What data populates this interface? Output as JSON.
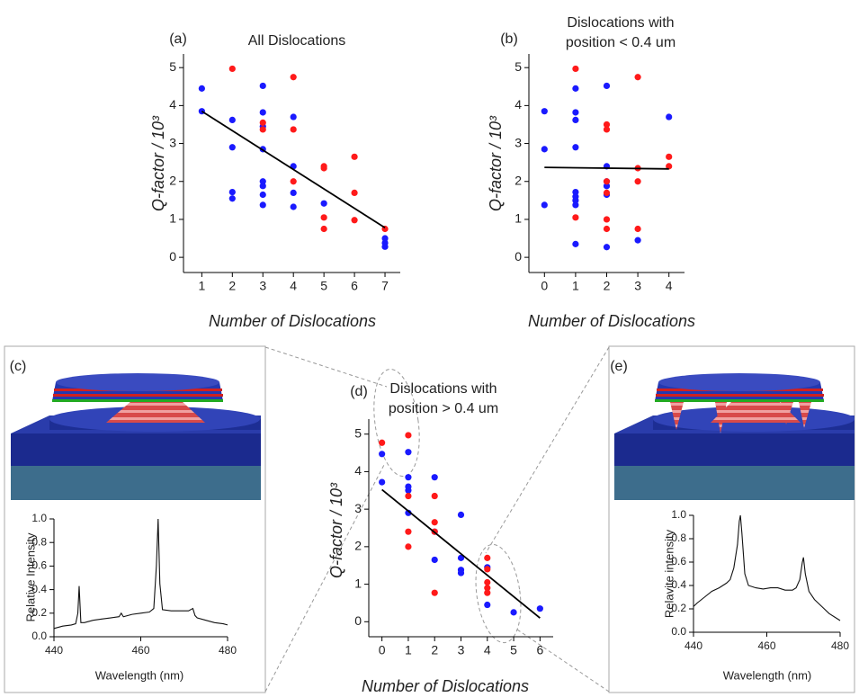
{
  "chart_data": [
    {
      "type": "scatter",
      "label": "(a)",
      "title": [
        "All Dislocations"
      ],
      "xlabel": "Number of Dislocations",
      "ylabel": "Q-factor / 10³",
      "xlim": [
        0.4,
        7.5
      ],
      "ylim": [
        -0.4,
        5.36
      ],
      "xticks": [
        1,
        2,
        3,
        4,
        5,
        6,
        7
      ],
      "yticks": [
        0,
        1,
        2,
        3,
        4,
        5
      ],
      "points": [
        {
          "color": "#1a1aff",
          "x": [
            1,
            1,
            2,
            2,
            2,
            2,
            3,
            3,
            3,
            3,
            3,
            3,
            3,
            3,
            4,
            4,
            4,
            4,
            5,
            7,
            7,
            7
          ],
          "values": [
            4.45,
            3.85,
            3.62,
            2.9,
            1.72,
            1.55,
            4.52,
            3.82,
            3.45,
            2.85,
            2.0,
            1.88,
            1.65,
            1.38,
            3.7,
            2.4,
            1.7,
            1.33,
            1.42,
            0.5,
            0.38,
            0.28
          ]
        },
        {
          "color": "#ff1a1a",
          "x": [
            2,
            3,
            3,
            4,
            4,
            4,
            5,
            5,
            5,
            5,
            6,
            6,
            6,
            7
          ],
          "values": [
            4.97,
            3.55,
            3.37,
            4.75,
            3.37,
            2.0,
            2.4,
            2.35,
            1.05,
            0.75,
            2.65,
            1.7,
            0.98,
            0.75
          ]
        }
      ],
      "fit": {
        "x": [
          1,
          7
        ],
        "values": [
          3.85,
          0.78
        ]
      }
    },
    {
      "type": "scatter",
      "label": "(b)",
      "title": [
        "Dislocations with",
        "position < 0.4 um"
      ],
      "xlabel": "Number of Dislocations",
      "ylabel": "Q-factor / 10³",
      "xlim": [
        -0.5,
        4.5
      ],
      "ylim": [
        -0.4,
        5.36
      ],
      "xticks": [
        0,
        1,
        2,
        3,
        4
      ],
      "yticks": [
        0,
        1,
        2,
        3,
        4,
        5
      ],
      "points": [
        {
          "color": "#1a1aff",
          "x": [
            0,
            0,
            0,
            1,
            1,
            1,
            1,
            1,
            1,
            1,
            1,
            1,
            2,
            2,
            2,
            2,
            2,
            2,
            3,
            4
          ],
          "values": [
            3.85,
            2.85,
            1.38,
            4.45,
            3.82,
            3.62,
            2.9,
            1.72,
            1.6,
            1.5,
            1.38,
            0.35,
            4.52,
            2.4,
            2.0,
            1.88,
            1.65,
            0.27,
            0.45,
            3.7
          ]
        },
        {
          "color": "#ff1a1a",
          "x": [
            1,
            1,
            2,
            2,
            2,
            2,
            2,
            2,
            3,
            3,
            3,
            3,
            4,
            4
          ],
          "values": [
            4.97,
            1.05,
            3.5,
            3.37,
            2.0,
            1.7,
            1.0,
            0.75,
            4.75,
            2.35,
            2.0,
            0.75,
            2.65,
            2.4
          ]
        }
      ],
      "fit": {
        "x": [
          0,
          4
        ],
        "values": [
          2.37,
          2.33
        ]
      }
    },
    {
      "type": "line",
      "label": "(c)",
      "xlabel": "Wavelength (nm)",
      "ylabel": "Relative Intensity",
      "color": "#111",
      "xlim": [
        440,
        480
      ],
      "ylim": [
        0,
        1.0
      ],
      "xticks": [
        440,
        460,
        480
      ],
      "yticks": [
        {
          "value": 0,
          "label": "0.0"
        },
        0.2,
        0.4,
        0.6,
        0.8,
        {
          "value": 1,
          "label": "1.0"
        }
      ],
      "x": [
        440,
        442,
        444,
        445,
        445.5,
        445.8,
        446.2,
        447,
        449,
        451,
        453,
        455,
        455.5,
        456,
        458,
        460,
        462,
        463,
        463.6,
        464,
        464.4,
        465,
        467,
        469,
        471,
        472,
        472.5,
        473,
        475,
        477,
        479,
        480
      ],
      "values": [
        0.07,
        0.09,
        0.1,
        0.11,
        0.2,
        0.43,
        0.12,
        0.12,
        0.14,
        0.15,
        0.16,
        0.17,
        0.2,
        0.17,
        0.19,
        0.2,
        0.21,
        0.24,
        0.6,
        1.0,
        0.45,
        0.23,
        0.22,
        0.22,
        0.22,
        0.24,
        0.18,
        0.16,
        0.14,
        0.12,
        0.11,
        0.1
      ]
    },
    {
      "type": "scatter",
      "label": "(d)",
      "title": [
        "Dislocations with",
        "position > 0.4 um"
      ],
      "xlabel": "Number of Dislocations",
      "ylabel": "Q-factor / 10³",
      "xlim": [
        -0.5,
        6.5
      ],
      "ylim": [
        -0.4,
        5.4
      ],
      "xticks": [
        0,
        1,
        2,
        3,
        4,
        5,
        6
      ],
      "yticks": [
        0,
        1,
        2,
        3,
        4,
        5
      ],
      "points": [
        {
          "color": "#1a1aff",
          "x": [
            0,
            0,
            1,
            1,
            1,
            1,
            1,
            2,
            2,
            2,
            3,
            3,
            3,
            3,
            4,
            4,
            5,
            6
          ],
          "values": [
            4.47,
            3.72,
            4.52,
            3.85,
            3.6,
            3.5,
            2.9,
            3.85,
            2.4,
            1.65,
            2.85,
            1.7,
            1.38,
            1.3,
            1.45,
            0.45,
            0.25,
            0.35
          ]
        },
        {
          "color": "#ff1a1a",
          "x": [
            0,
            1,
            1,
            1,
            1,
            2,
            2,
            2,
            2,
            4,
            4,
            4,
            4,
            4
          ],
          "values": [
            4.77,
            4.97,
            3.35,
            2.4,
            2.0,
            3.35,
            2.65,
            2.4,
            0.77,
            1.7,
            1.4,
            1.05,
            0.9,
            0.77
          ]
        }
      ],
      "fit": {
        "x": [
          0,
          6
        ],
        "values": [
          3.52,
          0.1
        ]
      }
    },
    {
      "type": "line",
      "label": "(e)",
      "xlabel": "Wavelength (nm)",
      "ylabel": "Relavite intensity",
      "color": "#111",
      "xlim": [
        440,
        480
      ],
      "ylim": [
        0,
        1.0
      ],
      "xticks": [
        440,
        460,
        480
      ],
      "yticks": [
        {
          "value": 0,
          "label": "0.0"
        },
        0.2,
        0.4,
        0.6,
        0.8,
        {
          "value": 1,
          "label": "1.0"
        }
      ],
      "x": [
        440,
        441,
        443,
        445,
        447,
        449,
        450,
        451,
        452,
        452.5,
        452.8,
        453.2,
        454,
        455,
        457,
        459,
        461,
        463,
        465,
        467,
        468,
        469,
        469.7,
        470,
        470.5,
        471.5,
        473,
        475,
        477,
        479,
        480
      ],
      "values": [
        0.22,
        0.25,
        0.3,
        0.35,
        0.38,
        0.42,
        0.45,
        0.55,
        0.75,
        0.95,
        1.0,
        0.85,
        0.5,
        0.4,
        0.38,
        0.37,
        0.38,
        0.38,
        0.36,
        0.36,
        0.38,
        0.45,
        0.6,
        0.64,
        0.5,
        0.35,
        0.28,
        0.22,
        0.16,
        0.12,
        0.1
      ]
    }
  ]
}
